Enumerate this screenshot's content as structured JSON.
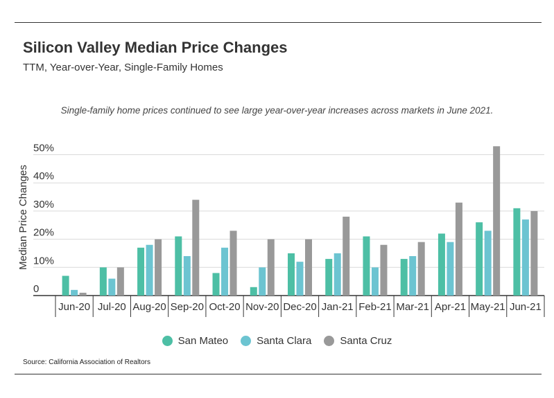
{
  "header": {
    "title": "Silicon Valley Median Price Changes",
    "subtitle": "TTM, Year-over-Year, Single-Family Homes",
    "note": "Single-family home prices continued to see large year-over-year increases across markets in June 2021."
  },
  "footer": {
    "source": "Source:  California Association of Realtors"
  },
  "colors": {
    "San Mateo": "#4dbfa5",
    "Santa Clara": "#6cc4d1",
    "Santa Cruz": "#999999"
  },
  "chart_data": {
    "type": "bar",
    "title": "Silicon Valley Median Price Changes",
    "subtitle": "TTM, Year-over-Year, Single-Family Homes",
    "xlabel": "",
    "ylabel": "Median Price Changes",
    "ylim": [
      0,
      55
    ],
    "yticks": [
      0,
      10,
      20,
      30,
      40,
      50
    ],
    "ytick_labels": [
      "0",
      "10%",
      "20%",
      "30%",
      "40%",
      "50%"
    ],
    "grid": true,
    "legend_position": "bottom-center",
    "categories": [
      "Jun-20",
      "Jul-20",
      "Aug-20",
      "Sep-20",
      "Oct-20",
      "Nov-20",
      "Dec-20",
      "Jan-21",
      "Feb-21",
      "Mar-21",
      "Apr-21",
      "May-21",
      "Jun-21"
    ],
    "series": [
      {
        "name": "San Mateo",
        "values": [
          7,
          10,
          17,
          21,
          8,
          3,
          15,
          13,
          21,
          13,
          22,
          26,
          31
        ]
      },
      {
        "name": "Santa Clara",
        "values": [
          2,
          6,
          18,
          14,
          17,
          10,
          12,
          15,
          10,
          14,
          19,
          23,
          27
        ]
      },
      {
        "name": "Santa Cruz",
        "values": [
          1,
          10,
          20,
          34,
          23,
          20,
          20,
          28,
          18,
          19,
          33,
          53,
          30
        ]
      }
    ]
  }
}
